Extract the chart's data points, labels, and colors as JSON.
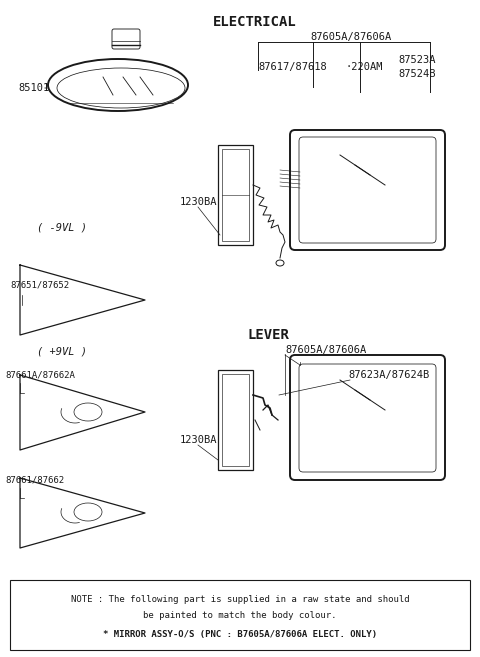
{
  "bg_color": "#ffffff",
  "dark": "#1a1a1a",
  "title_electrical": "ELECTRICAL",
  "title_lever": "LEVER",
  "note_line1": "NOTE : The following part is supplied in a raw state and should",
  "note_line2": "be painted to match the body colour.",
  "note_line3": "* MIRROR ASSY-O/S (PNC : B7605A/87606A ELECT. ONLY)",
  "lw": 0.9
}
